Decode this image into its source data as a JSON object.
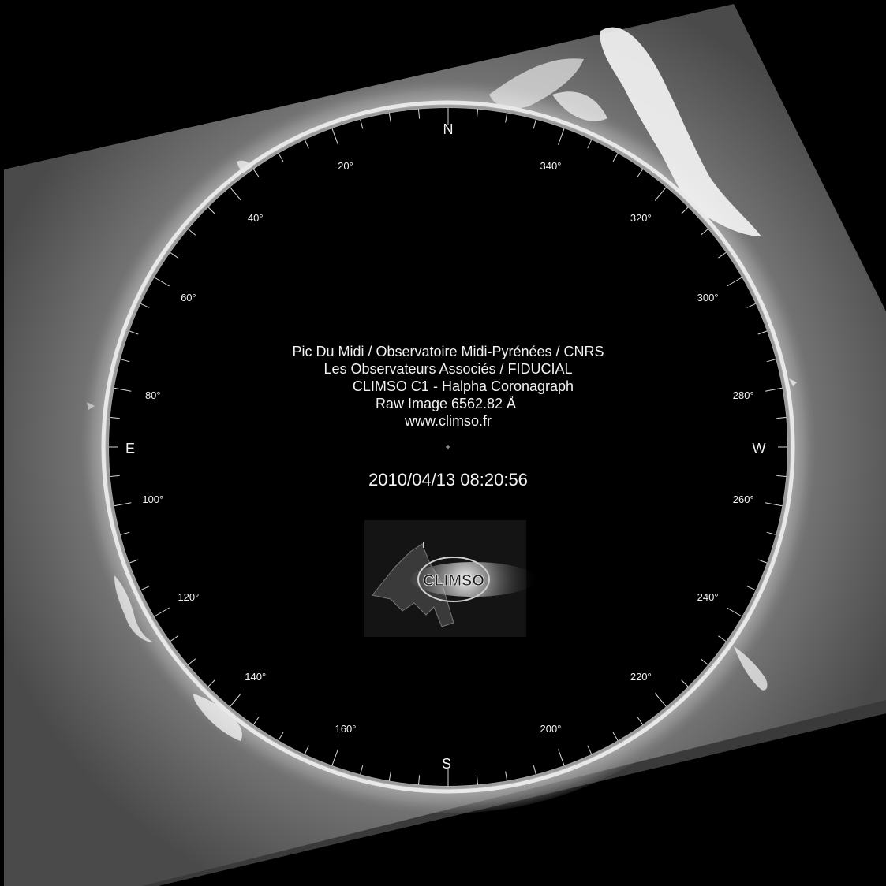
{
  "observatory": {
    "credits": [
      "Pic Du Midi / Observatoire Midi-Pyrénées / CNRS",
      "Les Observateurs Associés / FIDUCIAL",
      "CLIMSO C1 - Halpha Coronagraph",
      "Raw Image 6562.82 Å",
      "www.climso.fr"
    ],
    "timestamp": "2010/04/13 08:20:56",
    "logo_text": "CLIMSO"
  },
  "compass": {
    "north": "N",
    "south": "S",
    "east": "E",
    "west": "W",
    "angle_labels": [
      "20°",
      "40°",
      "60°",
      "80°",
      "100°",
      "120°",
      "140°",
      "160°",
      "200°",
      "220°",
      "240°",
      "260°",
      "280°",
      "300°",
      "320°",
      "340°"
    ],
    "angles": [
      20,
      40,
      60,
      80,
      100,
      120,
      140,
      160,
      200,
      220,
      240,
      260,
      280,
      300,
      320,
      340
    ]
  },
  "colors": {
    "background": "#000000",
    "frame": "#6b6b6b",
    "limb": "#e8e8e8",
    "disk": "#000000",
    "text": "#f2f2f2"
  }
}
